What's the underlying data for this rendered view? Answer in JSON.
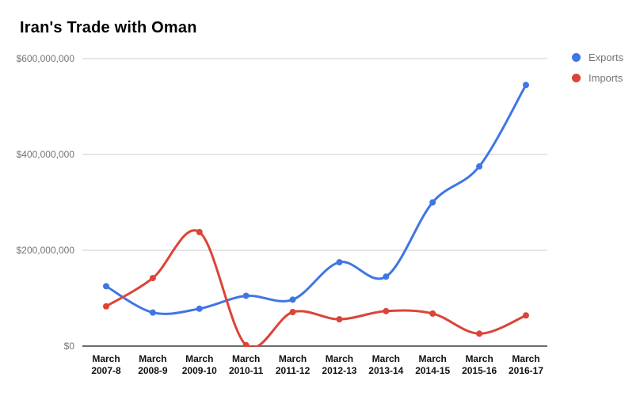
{
  "chart_data": {
    "type": "line",
    "title": "Iran's Trade with Oman",
    "smooth": true,
    "grid": true,
    "legend_position": "right",
    "value_unit": "USD millions",
    "ylim": [
      0,
      600
    ],
    "yticks": [
      {
        "value": 0,
        "label": "$0"
      },
      {
        "value": 200,
        "label": "$200,000,000"
      },
      {
        "value": 400,
        "label": "$400,000,000"
      },
      {
        "value": 600,
        "label": "$600,000,000"
      }
    ],
    "categories": [
      "March 2007-8",
      "March 2008-9",
      "March 2009-10",
      "March 2010-11",
      "March 2011-12",
      "March 2012-13",
      "March 2013-14",
      "March 2014-15",
      "March 2015-16",
      "March 2016-17"
    ],
    "series": [
      {
        "name": "Exports",
        "color": "#3F76E3",
        "values": [
          125,
          70,
          78,
          105,
          97,
          175,
          145,
          300,
          375,
          545
        ]
      },
      {
        "name": "Imports",
        "color": "#DB4437",
        "values": [
          83,
          142,
          238,
          2,
          71,
          56,
          73,
          68,
          26,
          64
        ]
      }
    ]
  },
  "colors": {
    "gridline": "#cccccc",
    "axis_line": "#3c3c3c",
    "y_label": "#757575",
    "x_label": "#111111",
    "title": "#000000",
    "legend_label": "#757575"
  }
}
